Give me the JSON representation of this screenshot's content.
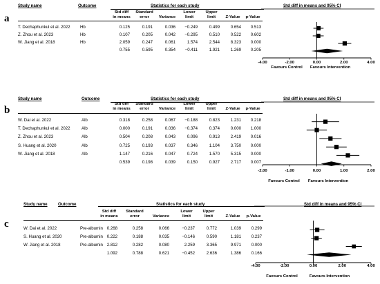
{
  "chart_data": [
    {
      "type": "forest",
      "panel_label": "a",
      "headers": {
        "study": "Study name",
        "outcome": "Outcome",
        "stats": "Statistics for each study",
        "plot": "Std diff in means and 95% CI",
        "cols": [
          "Std diff\nin means",
          "Standard\nerror",
          "Variance",
          "Lower\nlimit",
          "Upper\nlimit",
          "Z-Value",
          "p-Value"
        ]
      },
      "rows": [
        {
          "study": "T. Dechaphunkul et al. 2022",
          "outcome": "Hb",
          "smd": 0.125,
          "se": 0.191,
          "var": 0.036,
          "lower": -0.249,
          "upper": 0.499,
          "z": 0.654,
          "p": 0.513,
          "cells": [
            "0.125",
            "0.191",
            "0.036",
            "−0.249",
            "0.499",
            "0.654",
            "0.513"
          ]
        },
        {
          "study": "Z. Zhou et al. 2023",
          "outcome": "Hb",
          "smd": 0.107,
          "se": 0.205,
          "var": 0.042,
          "lower": -0.295,
          "upper": 0.51,
          "z": 0.522,
          "p": 0.602,
          "cells": [
            "0.107",
            "0.205",
            "0.042",
            "−0.295",
            "0.510",
            "0.522",
            "0.602"
          ]
        },
        {
          "study": "W. Jiang et al. 2018",
          "outcome": "Hb",
          "smd": 2.059,
          "se": 0.247,
          "var": 0.061,
          "lower": 1.574,
          "upper": 2.544,
          "z": 8.323,
          "p": 0.0,
          "cells": [
            "2.059",
            "0.247",
            "0.061",
            "1.574",
            "2.544",
            "8.323",
            "0.000"
          ]
        }
      ],
      "pooled": {
        "smd": 0.755,
        "lower": -0.411,
        "upper": 1.921,
        "cells": [
          "0.755",
          "0.595",
          "0.354",
          "−0.411",
          "1.921",
          "1.269",
          "0.205"
        ]
      },
      "xlim": [
        -4,
        4
      ],
      "ticks": [
        "-4.00",
        "-2.00",
        "0.00",
        "2.00",
        "4.00"
      ],
      "tick_values": [
        -4,
        -2,
        0,
        2,
        4
      ],
      "favours_left": "Favours Control",
      "favours_right": "Favours Intervention"
    },
    {
      "type": "forest",
      "panel_label": "b",
      "headers": {
        "study": "Study name",
        "outcome": "Outcome",
        "stats": "Statistics for each study",
        "plot": "Std diff in means and 95% CI",
        "cols": [
          "Std diff\nin means",
          "Standard\nerror",
          "Variance",
          "Lower\nlimit",
          "Upper\nlimit",
          "Z-Value",
          "p-Value"
        ]
      },
      "rows": [
        {
          "study": "W. Dai et al. 2022",
          "outcome": "Alb",
          "smd": 0.318,
          "se": 0.258,
          "var": 0.067,
          "lower": -0.188,
          "upper": 0.823,
          "z": 1.231,
          "p": 0.218,
          "cells": [
            "0.318",
            "0.258",
            "0.067",
            "−0.188",
            "0.823",
            "1.231",
            "0.218"
          ]
        },
        {
          "study": "T. Dechaphunkul et al. 2022",
          "outcome": "Alb",
          "smd": 0.0,
          "se": 0.191,
          "var": 0.036,
          "lower": -0.374,
          "upper": 0.374,
          "z": 0.0,
          "p": 1.0,
          "cells": [
            "0.000",
            "0.191",
            "0.036",
            "−0.374",
            "0.374",
            "0.000",
            "1.000"
          ]
        },
        {
          "study": "Z. Zhou et al. 2023",
          "outcome": "Alb",
          "smd": 0.504,
          "se": 0.208,
          "var": 0.043,
          "lower": 0.096,
          "upper": 0.913,
          "z": 2.419,
          "p": 0.016,
          "cells": [
            "0.504",
            "0.208",
            "0.043",
            "0.096",
            "0.913",
            "2.419",
            "0.016"
          ]
        },
        {
          "study": "S. Huang et al. 2020",
          "outcome": "Alb",
          "smd": 0.725,
          "se": 0.193,
          "var": 0.037,
          "lower": 0.346,
          "upper": 1.104,
          "z": 3.75,
          "p": 0.0,
          "cells": [
            "0.725",
            "0.193",
            "0.037",
            "0.346",
            "1.104",
            "3.750",
            "0.000"
          ]
        },
        {
          "study": "W.  Jiang et al. 2018",
          "outcome": "Alb",
          "smd": 1.147,
          "se": 0.216,
          "var": 0.047,
          "lower": 0.724,
          "upper": 1.57,
          "z": 5.315,
          "p": 0.0,
          "cells": [
            "1.147",
            "0.216",
            "0.047",
            "0.724",
            "1.570",
            "5.315",
            "0.000"
          ]
        }
      ],
      "pooled": {
        "smd": 0.539,
        "lower": 0.15,
        "upper": 0.927,
        "cells": [
          "0.539",
          "0.198",
          "0.039",
          "0.150",
          "0.927",
          "2.717",
          "0.007"
        ]
      },
      "xlim": [
        -2,
        2
      ],
      "ticks": [
        "-2.00",
        "-1.00",
        "0.00",
        "1.00",
        "2.00"
      ],
      "tick_values": [
        -2,
        -1,
        0,
        1,
        2
      ],
      "favours_left": "Favours Control",
      "favours_right": "Favours Intervention"
    },
    {
      "type": "forest",
      "panel_label": "c",
      "headers": {
        "study": "Study name",
        "outcome": "Outcome",
        "stats": "Statistics for each study",
        "plot": "Std diff in means and 95% CI",
        "cols": [
          "Std diff\nin means",
          "Standard\nerror",
          "Variance",
          "Lower\nlimit",
          "Upper\nlimit",
          "Z-Value",
          "p-Value"
        ]
      },
      "rows": [
        {
          "study": "W. Dai et al. 2022",
          "outcome": "Pre-albumin",
          "smd": 0.268,
          "se": 0.258,
          "var": 0.066,
          "lower": -0.237,
          "upper": 0.772,
          "z": 1.039,
          "p": 0.299,
          "cells": [
            "0.268",
            "0.258",
            "0.066",
            "−0.237",
            "0.772",
            "1.039",
            "0.299"
          ]
        },
        {
          "study": "S. Huang et al. 2020",
          "outcome": "Pre-albumin",
          "smd": 0.222,
          "se": 0.188,
          "var": 0.035,
          "lower": -0.146,
          "upper": 0.59,
          "z": 1.181,
          "p": 0.237,
          "cells": [
            "0.222",
            "0.188",
            "0.035",
            "−0.146",
            "0.590",
            "1.181",
            "0.237"
          ]
        },
        {
          "study": "W. Jiang et al. 2018",
          "outcome": "Pre-albumin",
          "smd": 2.812,
          "se": 0.282,
          "var": 0.08,
          "lower": 2.259,
          "upper": 3.365,
          "z": 9.971,
          "p": 0.0,
          "cells": [
            "2.812",
            "0.282",
            "0.080",
            "2.259",
            "3.365",
            "9.971",
            "0.000"
          ]
        }
      ],
      "pooled": {
        "smd": 1.092,
        "lower": -0.452,
        "upper": 2.636,
        "cells": [
          "1.092",
          "0.788",
          "0.621",
          "−0.452",
          "2.636",
          "1.386",
          "0.166"
        ]
      },
      "xlim": [
        -4,
        4
      ],
      "ticks": [
        "-4.00",
        "-2.00",
        "0.00",
        "2.00",
        "4.00"
      ],
      "tick_values": [
        -4,
        -2,
        0,
        2,
        4
      ],
      "favours_left": "Favours Control",
      "favours_right": "Favours Intervention"
    }
  ]
}
